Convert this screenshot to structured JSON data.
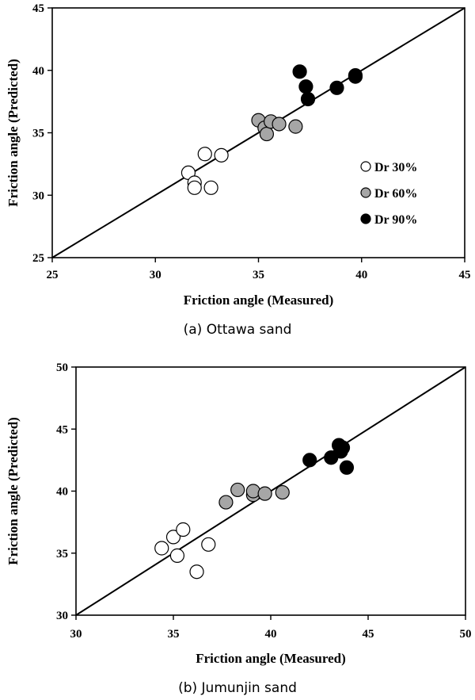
{
  "chart_data": [
    {
      "type": "scatter",
      "xlabel": "Friction angle (Measured)",
      "ylabel": "Friction angle (Predicted)",
      "caption": "(a) Ottawa sand",
      "xlim": [
        25,
        45
      ],
      "ylim": [
        25,
        45
      ],
      "xticks": [
        25,
        30,
        35,
        40,
        45
      ],
      "yticks": [
        25,
        30,
        35,
        40,
        45
      ],
      "legend": "right",
      "reference_line": "y = x",
      "series": [
        {
          "name": "Dr 30%",
          "color": "#ffffff",
          "points": [
            [
              31.6,
              31.8
            ],
            [
              31.9,
              31.0
            ],
            [
              31.9,
              30.6
            ],
            [
              32.4,
              33.3
            ],
            [
              32.7,
              30.6
            ],
            [
              33.2,
              33.2
            ]
          ]
        },
        {
          "name": "Dr 60%",
          "color": "#a6a6a6",
          "points": [
            [
              35.0,
              36.0
            ],
            [
              35.3,
              35.4
            ],
            [
              35.4,
              34.9
            ],
            [
              35.6,
              35.9
            ],
            [
              36.0,
              35.7
            ],
            [
              36.8,
              35.5
            ]
          ]
        },
        {
          "name": "Dr 90%",
          "color": "#000000",
          "points": [
            [
              37.0,
              39.9
            ],
            [
              37.3,
              38.7
            ],
            [
              37.4,
              37.7
            ],
            [
              38.8,
              38.6
            ],
            [
              39.7,
              39.6
            ],
            [
              39.7,
              39.5
            ]
          ]
        }
      ]
    },
    {
      "type": "scatter",
      "xlabel": "Friction angle (Measured)",
      "ylabel": "Friction angle (Predicted)",
      "caption": "(b) Jumunjin sand",
      "xlim": [
        30,
        50
      ],
      "ylim": [
        30,
        50
      ],
      "xticks": [
        30,
        35,
        40,
        45,
        50
      ],
      "yticks": [
        30,
        35,
        40,
        45,
        50
      ],
      "reference_line": "y = x",
      "series": [
        {
          "name": "Dr 30%",
          "color": "#ffffff",
          "points": [
            [
              34.4,
              35.4
            ],
            [
              35.0,
              36.3
            ],
            [
              35.2,
              34.8
            ],
            [
              35.5,
              36.9
            ],
            [
              36.2,
              33.5
            ],
            [
              36.8,
              35.7
            ]
          ]
        },
        {
          "name": "Dr 60%",
          "color": "#a6a6a6",
          "points": [
            [
              37.7,
              39.1
            ],
            [
              38.3,
              40.1
            ],
            [
              39.1,
              39.7
            ],
            [
              39.1,
              40.0
            ],
            [
              39.7,
              39.8
            ],
            [
              40.6,
              39.9
            ]
          ]
        },
        {
          "name": "Dr 90%",
          "color": "#000000",
          "points": [
            [
              42.0,
              42.5
            ],
            [
              43.1,
              42.7
            ],
            [
              43.5,
              43.7
            ],
            [
              43.6,
              43.2
            ],
            [
              43.7,
              43.5
            ],
            [
              43.9,
              41.9
            ]
          ]
        }
      ]
    }
  ]
}
